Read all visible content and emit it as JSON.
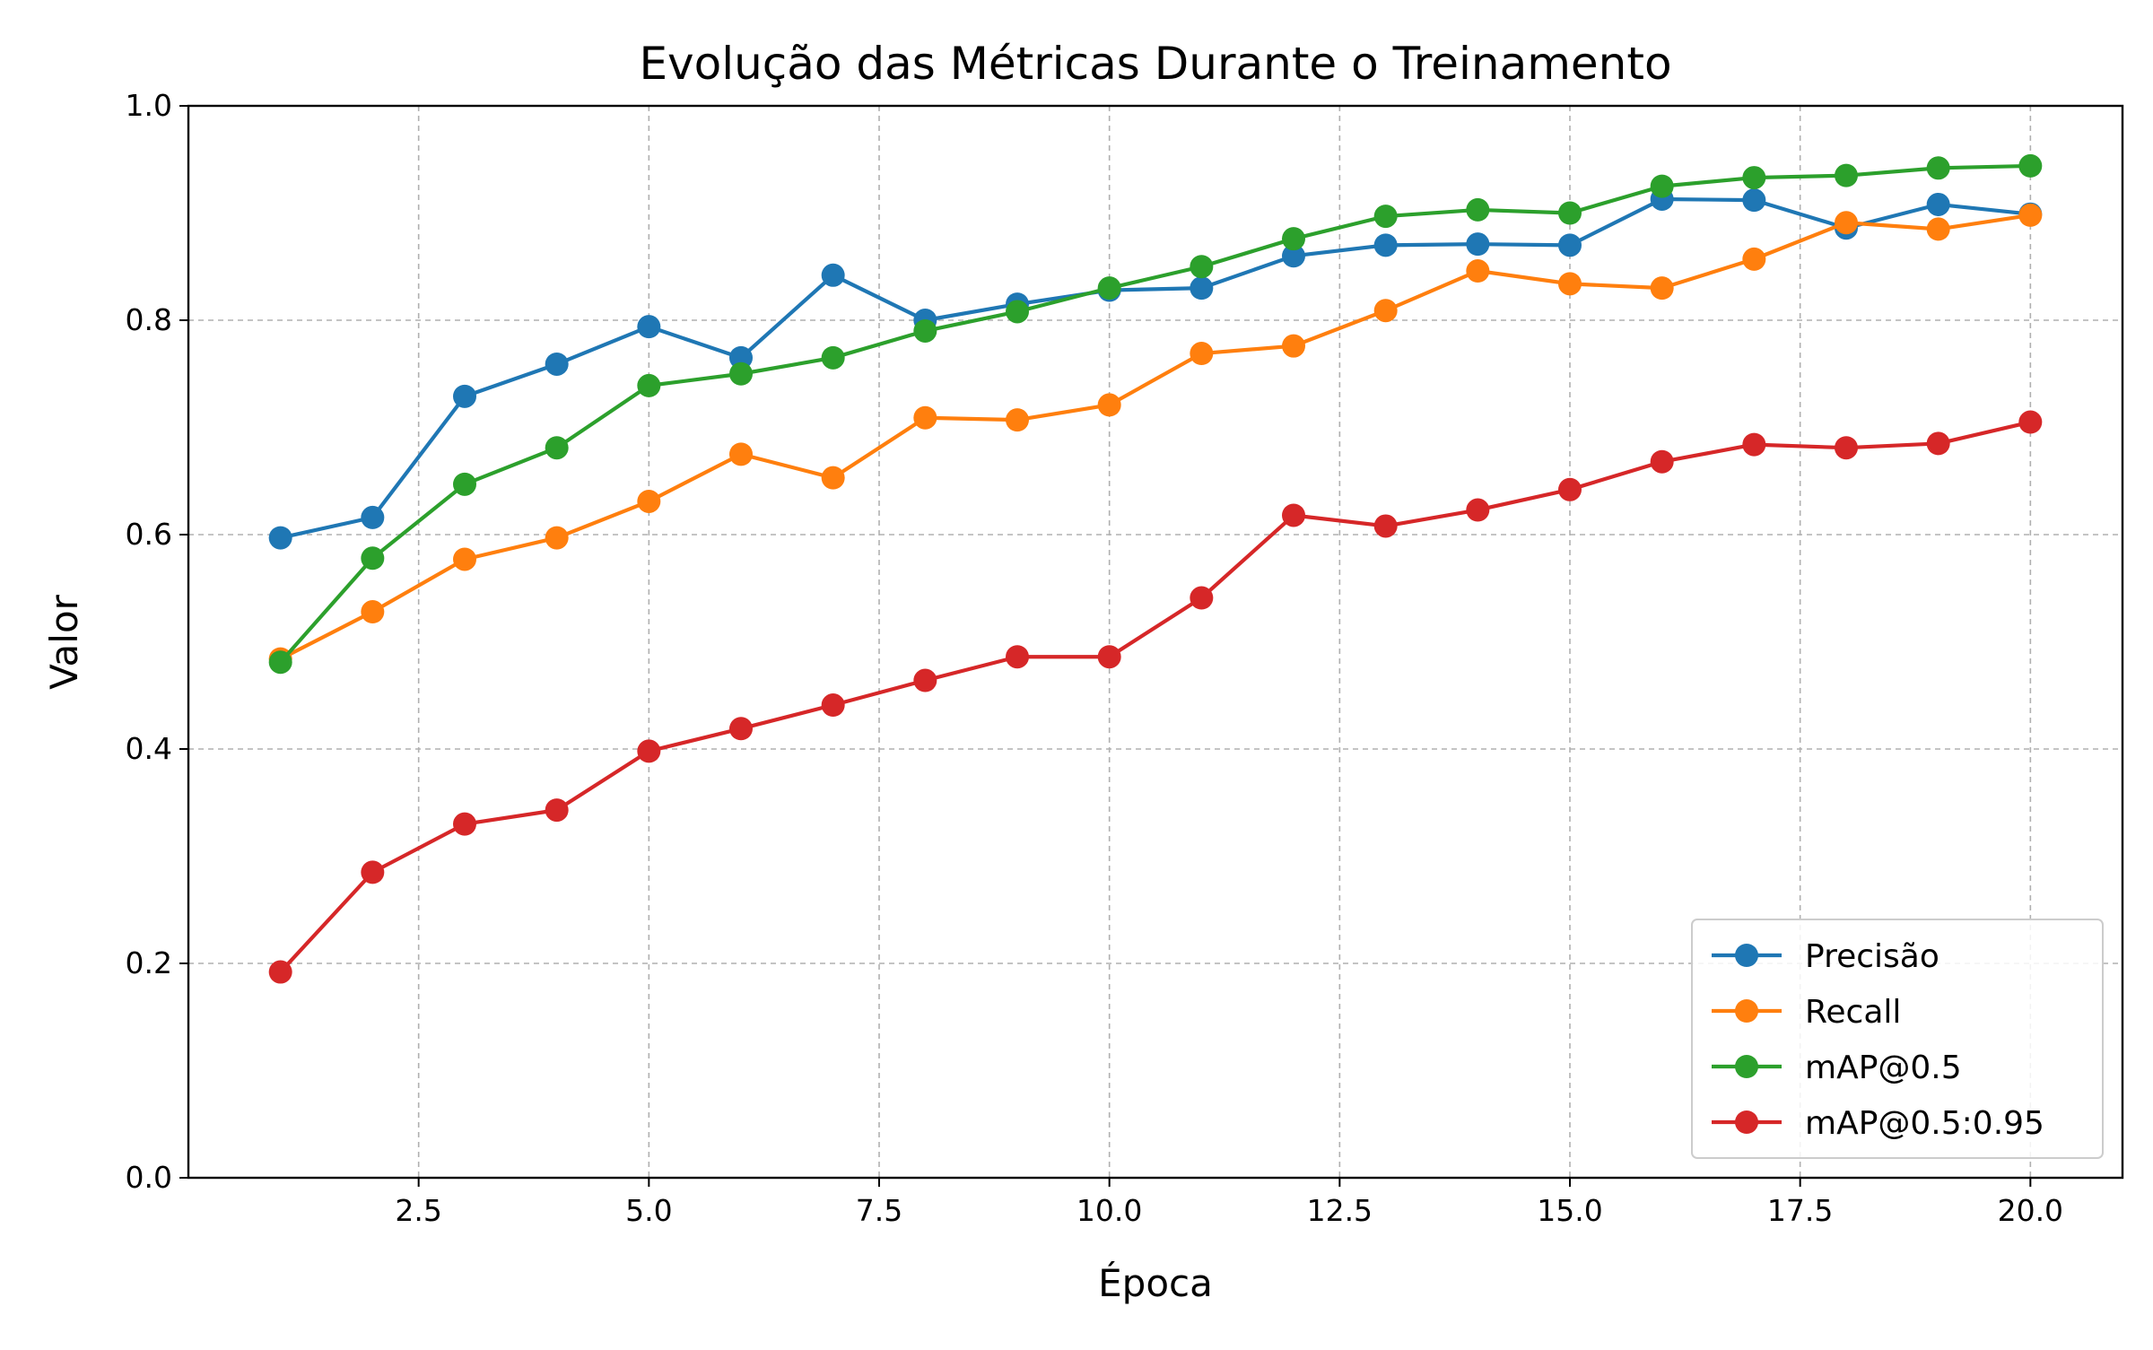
{
  "chart_data": {
    "type": "line",
    "title": "Evolução das Métricas Durante o Treinamento",
    "xlabel": "Época",
    "ylabel": "Valor",
    "xlim": [
      0.0,
      21.0
    ],
    "ylim": [
      0.0,
      1.0
    ],
    "x_ticks": [
      2.5,
      5.0,
      7.5,
      10.0,
      12.5,
      15.0,
      17.5,
      20.0
    ],
    "x_tick_labels": [
      "2.5",
      "5.0",
      "7.5",
      "10.0",
      "12.5",
      "15.0",
      "17.5",
      "20.0"
    ],
    "y_ticks": [
      0.0,
      0.2,
      0.4,
      0.6,
      0.8,
      1.0
    ],
    "y_tick_labels": [
      "0.0",
      "0.2",
      "0.4",
      "0.6",
      "0.8",
      "1.0"
    ],
    "grid": true,
    "legend_position": "lower-right",
    "x": [
      1,
      2,
      3,
      4,
      5,
      6,
      7,
      8,
      9,
      10,
      11,
      12,
      13,
      14,
      15,
      16,
      17,
      18,
      19,
      20
    ],
    "series": [
      {
        "name": "Precisão",
        "color": "#1f77b4",
        "values": [
          0.597,
          0.616,
          0.729,
          0.759,
          0.794,
          0.765,
          0.842,
          0.8,
          0.815,
          0.828,
          0.83,
          0.86,
          0.87,
          0.871,
          0.87,
          0.913,
          0.912,
          0.886,
          0.908,
          0.899
        ]
      },
      {
        "name": "Recall",
        "color": "#ff7f0e",
        "values": [
          0.484,
          0.528,
          0.577,
          0.597,
          0.631,
          0.675,
          0.653,
          0.709,
          0.707,
          0.721,
          0.769,
          0.776,
          0.809,
          0.846,
          0.834,
          0.83,
          0.857,
          0.891,
          0.885,
          0.898
        ]
      },
      {
        "name": "mAP@0.5",
        "color": "#2ca02c",
        "values": [
          0.481,
          0.578,
          0.647,
          0.681,
          0.739,
          0.75,
          0.765,
          0.79,
          0.808,
          0.83,
          0.85,
          0.876,
          0.897,
          0.903,
          0.9,
          0.925,
          0.933,
          0.935,
          0.942,
          0.944
        ]
      },
      {
        "name": "mAP@0.5:0.95",
        "color": "#d62728",
        "values": [
          0.192,
          0.285,
          0.33,
          0.343,
          0.398,
          0.419,
          0.441,
          0.464,
          0.486,
          0.486,
          0.541,
          0.618,
          0.608,
          0.623,
          0.642,
          0.668,
          0.684,
          0.681,
          0.685,
          0.705
        ]
      }
    ]
  }
}
